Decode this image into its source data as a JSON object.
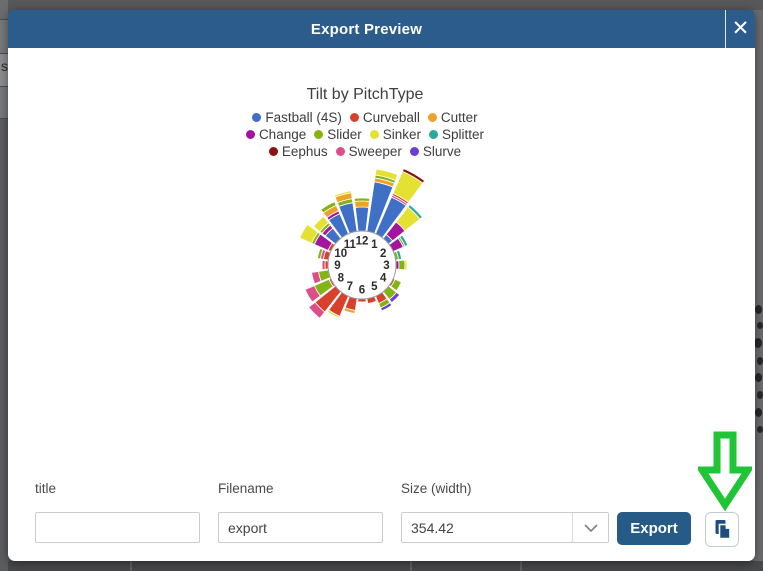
{
  "background": {
    "partial_letter": "s"
  },
  "modal": {
    "title": "Export Preview",
    "close_icon_glyph": "✕"
  },
  "form": {
    "title_field": {
      "label": "title",
      "value": "",
      "placeholder": ""
    },
    "filename_field": {
      "label": "Filename",
      "value": "export"
    },
    "size_field": {
      "label": "Size (width)",
      "value": "354.42"
    },
    "export_button_label": "Export"
  },
  "colors": {
    "header_blue": "#2b5c8c",
    "export_button_blue": "#275b87",
    "copy_icon_blue": "#1d4e7e",
    "annotation_arrow_green": "#1fc537",
    "overlay_gray": "#57585a"
  },
  "chart_data": {
    "type": "bar",
    "subtype": "polar-clock-rose-stacked",
    "title": "Tilt by PitchType",
    "legend_position": "top",
    "clock_labels": [
      "1",
      "2",
      "3",
      "4",
      "5",
      "6",
      "7",
      "8",
      "9",
      "10",
      "11",
      "12"
    ],
    "series": [
      {
        "name": "Fastball (4S)",
        "color": "#3f6fc6"
      },
      {
        "name": "Curveball",
        "color": "#d7402b"
      },
      {
        "name": "Cutter",
        "color": "#f1a128"
      },
      {
        "name": "Change",
        "color": "#a4149e"
      },
      {
        "name": "Slider",
        "color": "#84b414"
      },
      {
        "name": "Sinker",
        "color": "#e5e132"
      },
      {
        "name": "Splitter",
        "color": "#2ba79b"
      },
      {
        "name": "Eephus",
        "color": "#8c1210"
      },
      {
        "name": "Sweeper",
        "color": "#dd4e87"
      },
      {
        "name": "Slurve",
        "color": "#6b3fd1"
      }
    ],
    "legend_rows": [
      [
        "Fastball (4S)",
        "Curveball",
        "Cutter"
      ],
      [
        "Change",
        "Slider",
        "Sinker",
        "Splitter"
      ],
      [
        "Eephus",
        "Sweeper",
        "Slurve"
      ]
    ],
    "units": "relative magnitude (estimated from pixels)",
    "bars": [
      {
        "clock": 12,
        "stack": [
          [
            "Fastball (4S)",
            24
          ],
          [
            "Cutter",
            6
          ],
          [
            "Slider",
            3
          ]
        ]
      },
      {
        "clock": 12.5,
        "stack": [
          [
            "Fastball (4S)",
            50
          ],
          [
            "Cutter",
            4
          ],
          [
            "Slider",
            3
          ],
          [
            "Sinker",
            6
          ]
        ]
      },
      {
        "clock": 1,
        "stack": [
          [
            "Fastball (4S)",
            40
          ],
          [
            "Sweeper",
            2
          ],
          [
            "Curveball",
            2
          ],
          [
            "Sinker",
            24
          ],
          [
            "Eephus",
            3
          ]
        ]
      },
      {
        "clock": 1.5,
        "stack": [
          [
            "Fastball (4S)",
            5
          ],
          [
            "Change",
            16
          ],
          [
            "Sinker",
            19
          ],
          [
            "Splitter",
            3
          ]
        ]
      },
      {
        "clock": 2,
        "stack": [
          [
            "Change",
            11
          ],
          [
            "Slider",
            2
          ],
          [
            "Splitter",
            3
          ]
        ]
      },
      {
        "clock": 2.5,
        "stack": [
          [
            "Slider",
            3
          ],
          [
            "Splitter",
            3
          ]
        ]
      },
      {
        "clock": 3,
        "stack": [
          [
            "Change",
            3
          ],
          [
            "Slider",
            6
          ],
          [
            "Sinker",
            2
          ]
        ]
      },
      {
        "clock": 4,
        "stack": [
          [
            "Curveball",
            2
          ],
          [
            "Slider",
            7
          ]
        ]
      },
      {
        "clock": 4.5,
        "stack": [
          [
            "Slider",
            10
          ],
          [
            "Slurve",
            4
          ]
        ]
      },
      {
        "clock": 5,
        "stack": [
          [
            "Curveball",
            8
          ],
          [
            "Slider",
            5
          ],
          [
            "Slurve",
            3
          ]
        ]
      },
      {
        "clock": 5.5,
        "stack": [
          [
            "Curveball",
            5
          ]
        ]
      },
      {
        "clock": 6,
        "stack": [
          [
            "Curveball",
            3
          ]
        ]
      },
      {
        "clock": 6.5,
        "stack": [
          [
            "Curveball",
            12
          ],
          [
            "Cutter",
            3
          ]
        ]
      },
      {
        "clock": 7,
        "stack": [
          [
            "Curveball",
            22
          ],
          [
            "Sinker",
            2
          ]
        ]
      },
      {
        "clock": 7.5,
        "stack": [
          [
            "Curveball",
            26
          ],
          [
            "Sweeper",
            8
          ]
        ]
      },
      {
        "clock": 8,
        "stack": [
          [
            "Curveball",
            2
          ],
          [
            "Slider",
            16
          ],
          [
            "Sweeper",
            10
          ]
        ]
      },
      {
        "clock": 8.5,
        "stack": [
          [
            "Slider",
            10
          ],
          [
            "Sweeper",
            7
          ]
        ]
      },
      {
        "clock": 9,
        "stack": [
          [
            "Curveball",
            3
          ],
          [
            "Sweeper",
            3
          ]
        ]
      },
      {
        "clock": 9.5,
        "stack": [
          [
            "Curveball",
            5
          ],
          [
            "Sweeper",
            3
          ],
          [
            "Slider",
            3
          ]
        ]
      },
      {
        "clock": 10,
        "stack": [
          [
            "Curveball",
            3
          ],
          [
            "Change",
            15
          ],
          [
            "Slider",
            3
          ],
          [
            "Sinker",
            13
          ]
        ]
      },
      {
        "clock": 10.5,
        "stack": [
          [
            "Fastball (4S)",
            13
          ],
          [
            "Change",
            4
          ],
          [
            "Slider",
            3
          ],
          [
            "Sinker",
            8
          ]
        ]
      },
      {
        "clock": 11,
        "stack": [
          [
            "Fastball (4S)",
            22
          ],
          [
            "Change",
            3
          ],
          [
            "Cutter",
            6
          ],
          [
            "Slider",
            4
          ]
        ]
      },
      {
        "clock": 11.5,
        "stack": [
          [
            "Fastball (4S)",
            29
          ],
          [
            "Slider",
            4
          ],
          [
            "Cutter",
            6
          ],
          [
            "Sinker",
            2
          ]
        ]
      }
    ]
  }
}
